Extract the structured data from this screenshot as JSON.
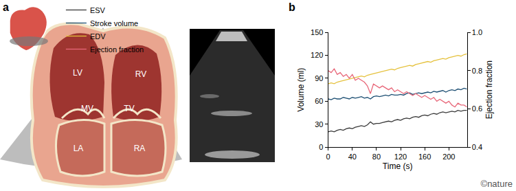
{
  "panel_labels": [
    "a",
    "b"
  ],
  "diagram": {
    "labels": [
      "LV",
      "RV",
      "MV",
      "TV",
      "LA",
      "RA"
    ]
  },
  "credit": "©nature",
  "chart_data": {
    "type": "line",
    "xlabel": "Time (s)",
    "ylabel": "Volume (ml)",
    "y2label": "Ejection fraction",
    "x": [
      0,
      5,
      10,
      15,
      20,
      25,
      30,
      35,
      40,
      45,
      50,
      55,
      60,
      65,
      70,
      75,
      80,
      85,
      90,
      95,
      100,
      105,
      110,
      115,
      120,
      125,
      130,
      135,
      140,
      145,
      150,
      155,
      160,
      165,
      170,
      175,
      180,
      185,
      190,
      195,
      200,
      205,
      210,
      215,
      220,
      225,
      230
    ],
    "xlim": [
      0,
      230
    ],
    "xticks": [
      0,
      40,
      80,
      120,
      160,
      200
    ],
    "ylim": [
      0,
      150
    ],
    "yticks": [
      0,
      30,
      60,
      90,
      120,
      150
    ],
    "y2lim": [
      0.4,
      1.0
    ],
    "y2ticks": [
      0.4,
      0.6,
      0.8,
      {
        "value": 1,
        "label": "1.0"
      }
    ],
    "grid": false,
    "legend": "top",
    "series": [
      {
        "name": "ESV",
        "color": "#3a3a3a",
        "values": [
          20,
          21,
          20,
          22,
          23,
          22,
          24,
          25,
          24,
          26,
          27,
          28,
          27,
          29,
          33,
          30,
          31,
          31,
          32,
          33,
          34,
          33,
          35,
          36,
          35,
          37,
          38,
          37,
          39,
          40,
          39,
          41,
          42,
          41,
          43,
          44,
          43,
          45,
          46,
          45,
          46,
          47,
          46,
          48,
          47,
          48,
          48
        ]
      },
      {
        "name": "Stroke volume",
        "color": "#1d4f73",
        "values": [
          63,
          62,
          64,
          63,
          63,
          65,
          64,
          63,
          65,
          64,
          65,
          66,
          64,
          65,
          63,
          66,
          67,
          66,
          67,
          68,
          67,
          69,
          68,
          68,
          69,
          68,
          70,
          71,
          69,
          70,
          71,
          70,
          71,
          72,
          71,
          73,
          72,
          73,
          74,
          72,
          74,
          75,
          74,
          76,
          75,
          77,
          76
        ]
      },
      {
        "name": "EDV",
        "color": "#e5c13c",
        "values": [
          83,
          84,
          83,
          85,
          86,
          87,
          88,
          89,
          90,
          91,
          92,
          93,
          92,
          94,
          95,
          96,
          97,
          98,
          99,
          100,
          101,
          102,
          101,
          103,
          104,
          105,
          106,
          107,
          106,
          108,
          109,
          110,
          111,
          112,
          111,
          113,
          114,
          115,
          116,
          115,
          117,
          118,
          119,
          120,
          119,
          121,
          122
        ]
      },
      {
        "name": "Ejection fraction",
        "color": "#e8687a",
        "axis": "y2",
        "values": [
          0.8,
          0.79,
          0.81,
          0.78,
          0.79,
          0.77,
          0.78,
          0.76,
          0.78,
          0.75,
          0.76,
          0.75,
          0.74,
          0.72,
          0.68,
          0.73,
          0.72,
          0.71,
          0.72,
          0.71,
          0.7,
          0.71,
          0.69,
          0.7,
          0.69,
          0.68,
          0.69,
          0.68,
          0.67,
          0.68,
          0.67,
          0.66,
          0.67,
          0.66,
          0.65,
          0.66,
          0.64,
          0.65,
          0.64,
          0.63,
          0.64,
          0.62,
          0.61,
          0.63,
          0.62,
          0.62,
          0.61
        ]
      }
    ]
  }
}
